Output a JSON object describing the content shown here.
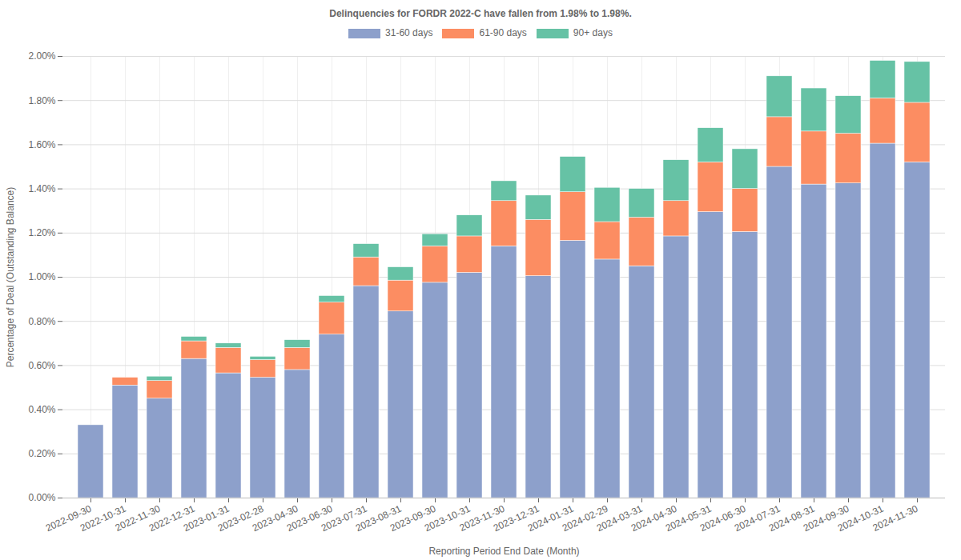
{
  "chart_data": {
    "type": "bar",
    "stacked": true,
    "title": "Delinquencies for FORDR 2022-C have fallen from 1.98% to 1.98%.",
    "x_label": "Reporting Period End Date (Month)",
    "y_label": "Percentage of Deal (Outstanding Balance)",
    "categories": [
      "2022-09-30",
      "2022-10-31",
      "2022-11-30",
      "2022-12-31",
      "2023-01-31",
      "2023-02-28",
      "2023-04-30",
      "2023-06-30",
      "2023-07-31",
      "2023-08-31",
      "2023-09-30",
      "2023-10-31",
      "2023-11-30",
      "2023-12-31",
      "2024-01-31",
      "2024-02-29",
      "2024-03-31",
      "2024-04-30",
      "2024-05-31",
      "2024-06-30",
      "2024-07-31",
      "2024-08-31",
      "2024-09-30",
      "2024-10-31",
      "2024-11-30"
    ],
    "series": [
      {
        "name": "31-60 days",
        "color": "#8da0cb",
        "values": [
          0.33,
          0.51,
          0.45,
          0.63,
          0.565,
          0.545,
          0.58,
          0.74,
          0.96,
          0.845,
          0.975,
          1.02,
          1.14,
          1.005,
          1.165,
          1.08,
          1.05,
          1.185,
          1.295,
          1.205,
          1.5,
          1.42,
          1.425,
          1.605,
          1.52
        ]
      },
      {
        "name": "61-90 days",
        "color": "#fc8d62",
        "values": [
          0,
          0.035,
          0.08,
          0.08,
          0.115,
          0.08,
          0.1,
          0.145,
          0.13,
          0.14,
          0.165,
          0.165,
          0.205,
          0.255,
          0.22,
          0.17,
          0.22,
          0.16,
          0.225,
          0.195,
          0.225,
          0.24,
          0.225,
          0.205,
          0.27
        ]
      },
      {
        "name": "90+ days",
        "color": "#66c2a5",
        "values": [
          0,
          0,
          0.02,
          0.02,
          0.02,
          0.015,
          0.035,
          0.03,
          0.06,
          0.06,
          0.055,
          0.095,
          0.09,
          0.11,
          0.16,
          0.155,
          0.13,
          0.185,
          0.155,
          0.18,
          0.185,
          0.195,
          0.17,
          0.17,
          0.185
        ]
      }
    ],
    "ylim": [
      0,
      2
    ],
    "yticks": [
      {
        "value": 0,
        "label": "0.00%"
      },
      {
        "value": 0.2,
        "label": "0.20%"
      },
      {
        "value": 0.4,
        "label": "0.40%"
      },
      {
        "value": 0.6,
        "label": "0.60%"
      },
      {
        "value": 0.8,
        "label": "0.80%"
      },
      {
        "value": 1,
        "label": "1.00%"
      },
      {
        "value": 1.2,
        "label": "1.20%"
      },
      {
        "value": 1.4,
        "label": "1.40%"
      },
      {
        "value": 1.6,
        "label": "1.60%"
      },
      {
        "value": 1.8,
        "label": "1.80%"
      },
      {
        "value": 2,
        "label": "2.00%"
      }
    ],
    "grid": true,
    "legend": "top"
  }
}
